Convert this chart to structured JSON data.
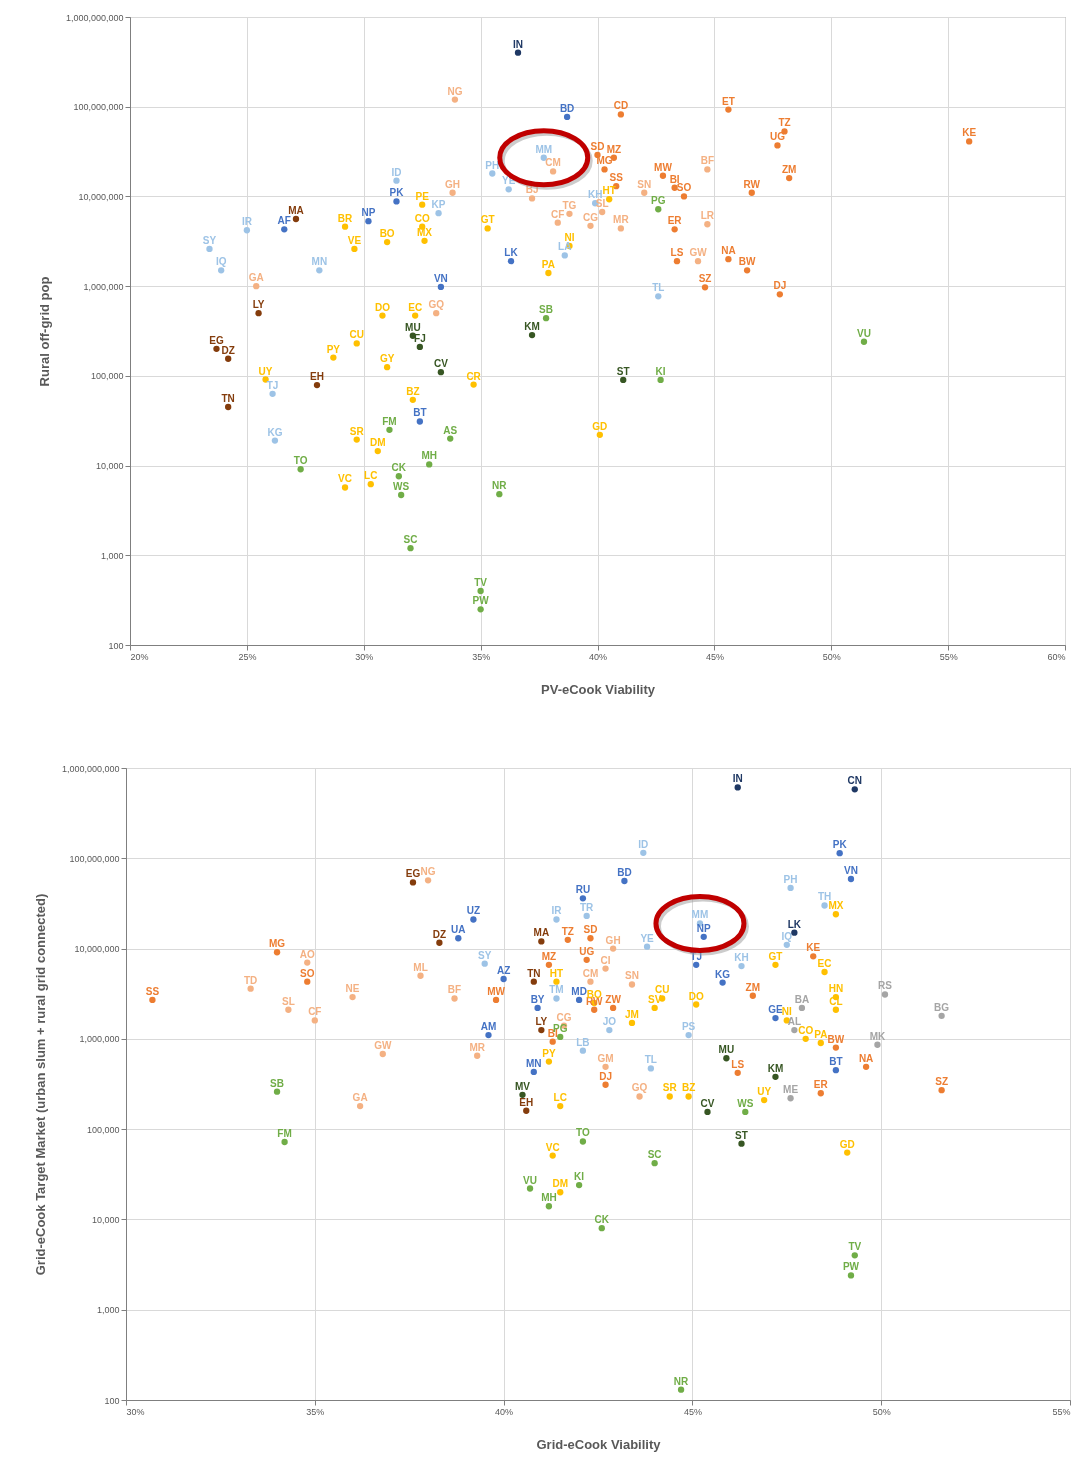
{
  "chart_data": [
    {
      "type": "scatter",
      "marker": "circle",
      "xlabel": "PV-eCook Viability",
      "ylabel": "Rural off-grid pop",
      "log": true,
      "grid": true,
      "xlim": [
        20,
        60
      ],
      "xticks": [
        {
          "value": 20,
          "label": "20%"
        },
        {
          "value": 25,
          "label": "25%"
        },
        {
          "value": 30,
          "label": "30%"
        },
        {
          "value": 35,
          "label": "35%"
        },
        {
          "value": 40,
          "label": "40%"
        },
        {
          "value": 45,
          "label": "45%"
        },
        {
          "value": 50,
          "label": "50%"
        },
        {
          "value": 55,
          "label": "55%"
        },
        {
          "value": 60,
          "label": "60%"
        }
      ],
      "ylim": [
        100,
        1000000000.0
      ],
      "yticks": [
        100,
        {
          "value": 1000,
          "label": "1,000"
        },
        {
          "value": 10000,
          "label": "10,000"
        },
        {
          "value": 100000,
          "label": "100,000"
        },
        {
          "value": 1000000,
          "label": "1,000,000"
        },
        {
          "value": 10000000,
          "label": "10,000,000"
        },
        {
          "value": 100000000,
          "label": "100,000,000"
        },
        {
          "value": 1000000000,
          "label": "1,000,000,000"
        }
      ],
      "series": [
        {
          "color": "#1f3864",
          "x": [
            36.6
          ],
          "values": [
            400000000.0
          ],
          "value_labels": [
            "IN"
          ]
        },
        {
          "color": "#4472c4",
          "x": [
            38.7,
            31.4,
            30.2,
            26.6,
            33.3,
            32.4,
            36.3
          ],
          "values": [
            77000000.0,
            8800000.0,
            5300000.0,
            4300000.0,
            980000.0,
            31000.0,
            1900000.0
          ],
          "value_labels": [
            "BD",
            "PK",
            "NP",
            "AF",
            "VN",
            "BT",
            "LK"
          ]
        },
        {
          "color": "#9dc3e6",
          "x": [
            37.7,
            35.5,
            31.4,
            36.2,
            33.2,
            39.9,
            38.6,
            42.6,
            23.4,
            23.9,
            28.1,
            25.0,
            26.1,
            26.2
          ],
          "values": [
            27000000.0,
            18000000.0,
            15000000.0,
            12000000.0,
            6500000.0,
            8400000.0,
            2200000.0,
            770000.0,
            2600000.0,
            1500000.0,
            1500000.0,
            4200000.0,
            63000.0,
            19000.0
          ],
          "value_labels": [
            "MM",
            "PH",
            "ID",
            "YE",
            "KP",
            "KH",
            "LA",
            "TL",
            "SY",
            "IQ",
            "MN",
            "IR",
            "TJ",
            "KG"
          ]
        },
        {
          "color": "#ed7d31",
          "x": [
            48.0,
            47.7,
            48.2,
            55.9,
            42.8,
            47.8,
            45.6,
            41.0,
            40.7,
            40.3,
            40.0,
            40.8,
            43.7,
            43.3,
            46.6,
            43.3,
            43.4,
            45.6,
            46.4,
            44.6
          ],
          "values": [
            53000000.0,
            37000000.0,
            16000000.0,
            41000000.0,
            17000000.0,
            810000.0,
            93000000.0,
            82000000.0,
            27000000.0,
            20000000.0,
            29000000.0,
            13000000.0,
            10000000.0,
            12500000.0,
            11000000.0,
            4300000.0,
            1900000.0,
            2000000.0,
            1500000.0,
            970000.0
          ],
          "value_labels": [
            "TZ",
            "UG",
            "ZM",
            "KE",
            "MW",
            "DJ",
            "ET",
            "CD",
            "MZ",
            "MG",
            "SD",
            "SS",
            "SO",
            "BI",
            "RW",
            "ER",
            "LS",
            "NA",
            "BW",
            "SZ"
          ]
        },
        {
          "color": "#f4b183",
          "x": [
            33.9,
            33.8,
            38.1,
            37.2,
            42.0,
            44.7,
            38.8,
            38.3,
            40.2,
            39.7,
            41.0,
            44.7,
            44.3,
            25.4,
            33.1
          ],
          "values": [
            120000000.0,
            11000000.0,
            19000000.0,
            9500000.0,
            11000000.0,
            20000000.0,
            6400000.0,
            5100000.0,
            6700000.0,
            4700000.0,
            4400000.0,
            4900000.0,
            1900000.0,
            1000000.0,
            500000.0
          ],
          "value_labels": [
            "NG",
            "GH",
            "CM",
            "BJ",
            "SN",
            "BF",
            "TG",
            "CF",
            "SL",
            "CG",
            "MR",
            "LR",
            "GW",
            "GA",
            "GQ"
          ]
        },
        {
          "color": "#ffc000",
          "x": [
            32.2,
            32.5,
            32.5,
            32.6,
            31.0,
            29.2,
            29.6,
            35.3,
            40.5,
            38.8,
            37.9,
            30.8,
            29.7,
            28.7,
            31.0,
            25.8,
            32.1,
            34.7,
            29.7,
            30.6,
            29.2,
            30.3,
            40.1
          ],
          "values": [
            470000.0,
            8100000.0,
            4600000.0,
            3200000.0,
            3100000.0,
            4600000.0,
            2600000.0,
            4400000.0,
            9300000.0,
            2800000.0,
            1400000.0,
            470000.0,
            230000.0,
            160000.0,
            125000.0,
            91000.0,
            54000.0,
            80000.0,
            19500.0,
            14500.0,
            5700.0,
            6200.0,
            22000.0
          ],
          "value_labels": [
            "EC",
            "PE",
            "CO",
            "MX",
            "BO",
            "BR",
            "VE",
            "GT",
            "HT",
            "NI",
            "PA",
            "DO",
            "CU",
            "PY",
            "GY",
            "UY",
            "BZ",
            "CR",
            "SR",
            "DM",
            "VC",
            "LC",
            "GD"
          ]
        },
        {
          "color": "#70ad47",
          "x": [
            51.4,
            35.0,
            35.0,
            42.6,
            37.8,
            31.1,
            33.7,
            32.8,
            31.5,
            31.6,
            35.8,
            32.0,
            27.3,
            42.7
          ],
          "values": [
            240000.0,
            250,
            400,
            7200000.0,
            440000.0,
            25000.0,
            20000.0,
            10300.0,
            7600.0,
            4700.0,
            4800.0,
            1200.0,
            9100.0,
            90000.0
          ],
          "value_labels": [
            "VU",
            "PW",
            "TV",
            "PG",
            "SB",
            "FM",
            "AS",
            "MH",
            "CK",
            "WS",
            "NR",
            "SC",
            "TO",
            "KI"
          ]
        },
        {
          "color": "#375623",
          "x": [
            37.2,
            32.1,
            32.4,
            41.1,
            33.3
          ],
          "values": [
            285000.0,
            280000.0,
            210000.0,
            90000.0,
            110000.0
          ],
          "value_labels": [
            "KM",
            "MU",
            "FJ",
            "ST",
            "CV"
          ]
        },
        {
          "color": "#843c0c",
          "x": [
            27.1,
            25.5,
            23.7,
            24.2,
            28.0,
            24.2
          ],
          "values": [
            5600000.0,
            500000.0,
            200000.0,
            155000.0,
            79000.0,
            45000.0
          ],
          "value_labels": [
            "MA",
            "LY",
            "EG",
            "DZ",
            "EH",
            "TN"
          ]
        }
      ]
    },
    {
      "type": "scatter",
      "marker": "circle",
      "xlabel": "Grid-eCook Viability",
      "ylabel": "Grid-eCook Target Market (urban slum + rural grid connected)",
      "log": true,
      "grid": true,
      "xlim": [
        30,
        55
      ],
      "xticks": [
        {
          "value": 30,
          "label": "30%"
        },
        {
          "value": 35,
          "label": "35%"
        },
        {
          "value": 40,
          "label": "40%"
        },
        {
          "value": 45,
          "label": "45%"
        },
        {
          "value": 50,
          "label": "50%"
        },
        {
          "value": 55,
          "label": "55%"
        }
      ],
      "ylim": [
        100,
        1000000000.0
      ],
      "yticks": [
        100,
        {
          "value": 1000,
          "label": "1,000"
        },
        {
          "value": 10000,
          "label": "10,000"
        },
        {
          "value": 100000,
          "label": "100,000"
        },
        {
          "value": 1000000,
          "label": "1,000,000"
        },
        {
          "value": 10000000,
          "label": "10,000,000"
        },
        {
          "value": 100000000,
          "label": "100,000,000"
        },
        {
          "value": 1000000000,
          "label": "1,000,000,000"
        }
      ],
      "series": [
        {
          "color": "#1f3864",
          "x": [
            46.2,
            49.3,
            47.7
          ],
          "values": [
            610000000.0,
            580000000.0,
            15000000.0
          ],
          "value_labels": [
            "IN",
            "CN",
            "LK"
          ]
        },
        {
          "color": "#4472c4",
          "x": [
            43.2,
            49.2,
            48.9,
            42.1,
            39.2,
            38.8,
            40.0,
            42.0,
            40.9,
            39.6,
            45.3,
            45.8,
            45.1,
            40.8,
            47.2,
            48.8
          ],
          "values": [
            56000000.0,
            59000000.0,
            114000000.0,
            36000000.0,
            21000000.0,
            13000000.0,
            4600000.0,
            2700000.0,
            2200000.0,
            1100000.0,
            13500000.0,
            4200000.0,
            6600000.0,
            430000.0,
            1700000.0,
            450000.0
          ],
          "value_labels": [
            "BD",
            "VN",
            "PK",
            "RU",
            "UZ",
            "UA",
            "AZ",
            "MD",
            "BY",
            "AM",
            "NP",
            "KG",
            "TJ",
            "MN",
            "GE",
            "BT"
          ]
        },
        {
          "color": "#9dc3e6",
          "x": [
            45.2,
            47.6,
            43.7,
            41.4,
            42.2,
            43.8,
            39.5,
            46.3,
            47.5,
            48.5,
            41.4,
            42.8,
            42.1,
            43.9,
            44.9
          ],
          "values": [
            19000000.0,
            47000000.0,
            115000000.0,
            21000000.0,
            23000000.0,
            10500000.0,
            6800000.0,
            6400000.0,
            11000000.0,
            30000000.0,
            2800000.0,
            1250000.0,
            740000.0,
            470000.0,
            1100000.0
          ],
          "value_labels": [
            "MM",
            "PH",
            "ID",
            "IR",
            "TR",
            "YE",
            "SY",
            "KH",
            "IQ",
            "TH",
            "TM",
            "JO",
            "LB",
            "TL",
            "PS"
          ]
        },
        {
          "color": "#ed7d31",
          "x": [
            41.7,
            42.3,
            42.2,
            41.2,
            39.8,
            46.6,
            48.2,
            42.7,
            34.0,
            34.8,
            30.7,
            42.4,
            42.9,
            41.3,
            46.2,
            49.6,
            48.4,
            48.8,
            51.6
          ],
          "values": [
            12500000.0,
            13000000.0,
            7500000.0,
            6600000.0,
            2700000.0,
            3000000.0,
            8200000.0,
            310000.0,
            9100000.0,
            4300000.0,
            2700000.0,
            2100000.0,
            2200000.0,
            930000.0,
            420000.0,
            490000.0,
            250000.0,
            800000.0,
            270000.0
          ],
          "value_labels": [
            "TZ",
            "SD",
            "UG",
            "MZ",
            "MW",
            "ZM",
            "KE",
            "DJ",
            "MG",
            "SO",
            "SS",
            "RW",
            "ZW",
            "BI",
            "LS",
            "NA",
            "ER",
            "BW",
            "SZ"
          ]
        },
        {
          "color": "#f4b183",
          "x": [
            42.9,
            38.0,
            34.8,
            33.3,
            36.0,
            34.3,
            35.0,
            37.8,
            38.7,
            36.8,
            39.3,
            36.2,
            42.7,
            42.3,
            43.4,
            41.6,
            42.7,
            43.6
          ],
          "values": [
            10000000.0,
            57000000.0,
            7000000.0,
            3600000.0,
            2900000.0,
            2100000.0,
            1600000.0,
            5000000.0,
            2800000.0,
            680000.0,
            650000.0,
            180000.0,
            6000000.0,
            4300000.0,
            4000000.0,
            1400000.0,
            490000.0,
            230000.0
          ],
          "value_labels": [
            "GH",
            "NG",
            "AO",
            "TD",
            "NE",
            "SL",
            "CF",
            "ML",
            "BF",
            "GW",
            "MR",
            "GA",
            "CI",
            "CM",
            "SN",
            "CG",
            "GM",
            "GQ"
          ]
        },
        {
          "color": "#ffc000",
          "x": [
            48.5,
            47.2,
            48.8,
            41.4,
            44.2,
            44.0,
            45.1,
            43.4,
            42.4,
            48.8,
            48.8,
            47.5,
            48.0,
            48.4,
            41.2,
            46.9,
            44.4,
            44.9,
            41.5,
            41.3,
            41.5,
            49.1
          ],
          "values": [
            5500000.0,
            6600000.0,
            24000000.0,
            4300000.0,
            2800000.0,
            2200000.0,
            2400000.0,
            1500000.0,
            2500000.0,
            2900000.0,
            2100000.0,
            1600000.0,
            1000000.0,
            900000.0,
            560000.0,
            210000.0,
            230000.0,
            230000.0,
            180000.0,
            51000.0,
            20000.0,
            55000.0
          ],
          "value_labels": [
            "EC",
            "GT",
            "MX",
            "HT",
            "CU",
            "SV",
            "DO",
            "JM",
            "BO",
            "HN",
            "CL",
            "NI",
            "CO",
            "PA",
            "PY",
            "UY",
            "SR",
            "BZ",
            "LC",
            "VC",
            "DM",
            "GD"
          ]
        },
        {
          "color": "#70ad47",
          "x": [
            40.7,
            42.0,
            41.2,
            42.6,
            42.1,
            44.0,
            44.7,
            49.2,
            49.3,
            34.0,
            34.2,
            41.5,
            46.4
          ],
          "values": [
            22000.0,
            24000.0,
            14000.0,
            8000.0,
            73000.0,
            42000.0,
            130,
            2400.0,
            4000.0,
            260000.0,
            72000.0,
            1050000.0,
            155000.0
          ],
          "value_labels": [
            "VU",
            "KI",
            "MH",
            "CK",
            "TO",
            "SC",
            "NR",
            "PW",
            "TV",
            "SB",
            "FM",
            "PG",
            "WS"
          ]
        },
        {
          "color": "#375623",
          "x": [
            47.2,
            45.9,
            45.4,
            46.3,
            40.5
          ],
          "values": [
            380000.0,
            610000.0,
            155000.0,
            69000.0,
            240000.0
          ],
          "value_labels": [
            "KM",
            "MU",
            "CV",
            "ST",
            "MV"
          ]
        },
        {
          "color": "#843c0c",
          "x": [
            37.6,
            38.3,
            41.0,
            40.8,
            41.0,
            40.6
          ],
          "values": [
            54000000.0,
            11600000.0,
            12000000.0,
            4300000.0,
            1250000.0,
            160000.0
          ],
          "value_labels": [
            "EG",
            "DZ",
            "MA",
            "TN",
            "LY",
            "EH"
          ]
        },
        {
          "color": "#a5a5a5",
          "x": [
            50.1,
            51.6,
            47.9,
            49.9,
            47.6,
            47.7
          ],
          "values": [
            3100000.0,
            1800000.0,
            2200000.0,
            860000.0,
            220000.0,
            1250000.0
          ],
          "value_labels": [
            "RS",
            "BG",
            "BA",
            "MK",
            "ME",
            "AL"
          ]
        }
      ]
    }
  ]
}
